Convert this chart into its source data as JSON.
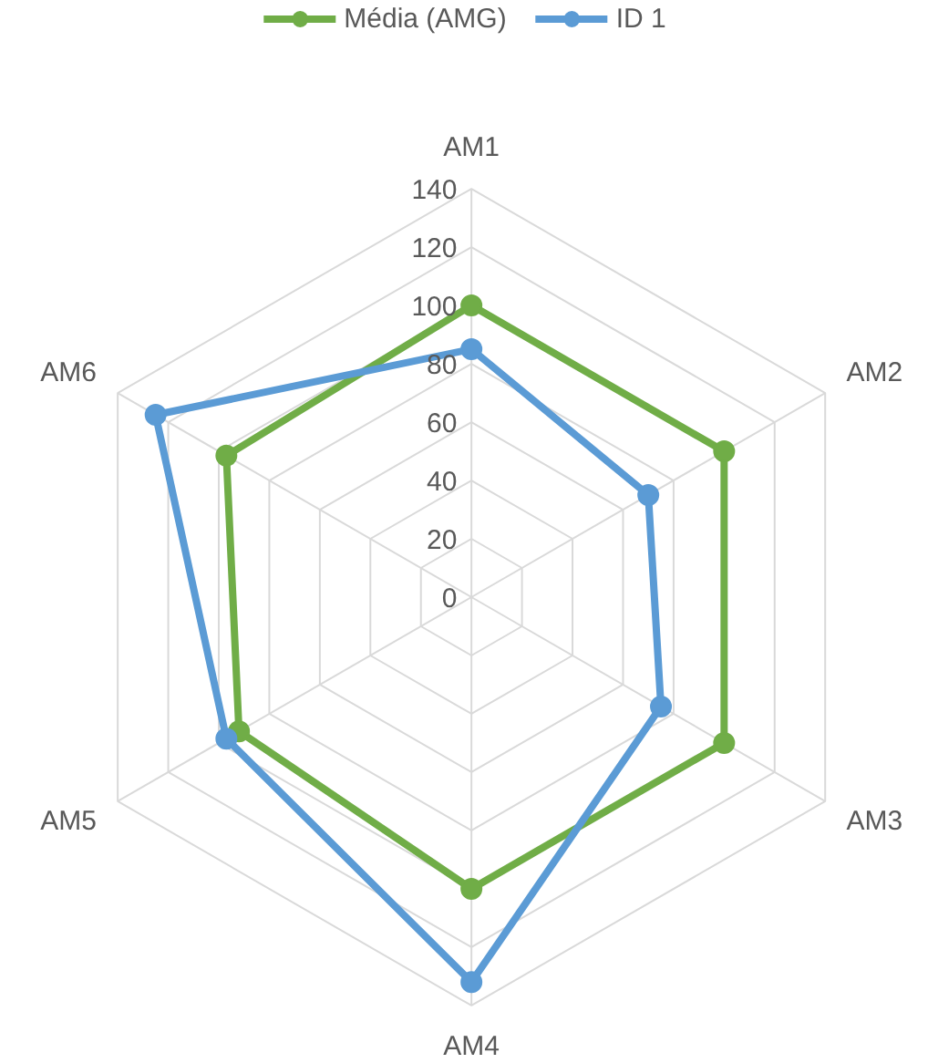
{
  "chart_data": {
    "type": "radar",
    "categories": [
      "AM1",
      "AM2",
      "AM3",
      "AM4",
      "AM5",
      "AM6"
    ],
    "series": [
      {
        "name": "Média (AMG)",
        "color": "#70ad47",
        "values": [
          100,
          100,
          100,
          100,
          92,
          97
        ]
      },
      {
        "name": "ID 1",
        "color": "#5b9bd5",
        "values": [
          85,
          70,
          75,
          132,
          97,
          125
        ]
      }
    ],
    "ylim": [
      0,
      140
    ],
    "yticks": [
      0,
      20,
      40,
      60,
      80,
      100,
      120,
      140
    ],
    "grid": true,
    "legend": "top",
    "marker": "circle"
  }
}
